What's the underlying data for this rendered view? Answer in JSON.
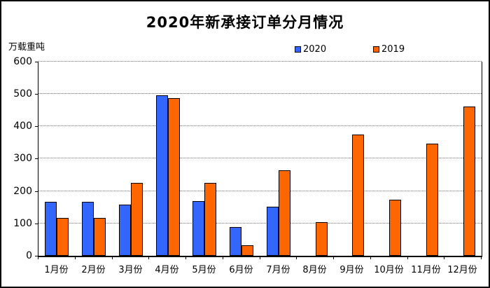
{
  "title": "2020年新承接订单分月情况",
  "y_unit_label": "万载重吨",
  "legend": {
    "items": [
      {
        "label": "2020",
        "color": "#3366FF"
      },
      {
        "label": "2019",
        "color": "#FF6600"
      }
    ]
  },
  "chart_data": {
    "type": "bar",
    "title": "2020年新承接订单分月情况",
    "ylabel": "万载重吨",
    "xlabel": "",
    "categories": [
      "1月份",
      "2月份",
      "3月份",
      "4月份",
      "5月份",
      "6月份",
      "7月份",
      "8月份",
      "9月份",
      "10月份",
      "11月份",
      "12月份"
    ],
    "series": [
      {
        "name": "2020",
        "color": "#3366FF",
        "values": [
          167,
          167,
          158,
          497,
          170,
          88,
          152,
          null,
          null,
          null,
          null,
          null
        ]
      },
      {
        "name": "2019",
        "color": "#FF6600",
        "values": [
          117,
          117,
          226,
          487,
          226,
          32,
          264,
          104,
          375,
          174,
          347,
          461
        ]
      }
    ],
    "ylim": [
      0,
      600
    ],
    "yticks": [
      0,
      100,
      200,
      300,
      400,
      500,
      600
    ],
    "grid": "horizontal-dotted",
    "legend_position": "top",
    "bar_border_color": "#000000"
  }
}
